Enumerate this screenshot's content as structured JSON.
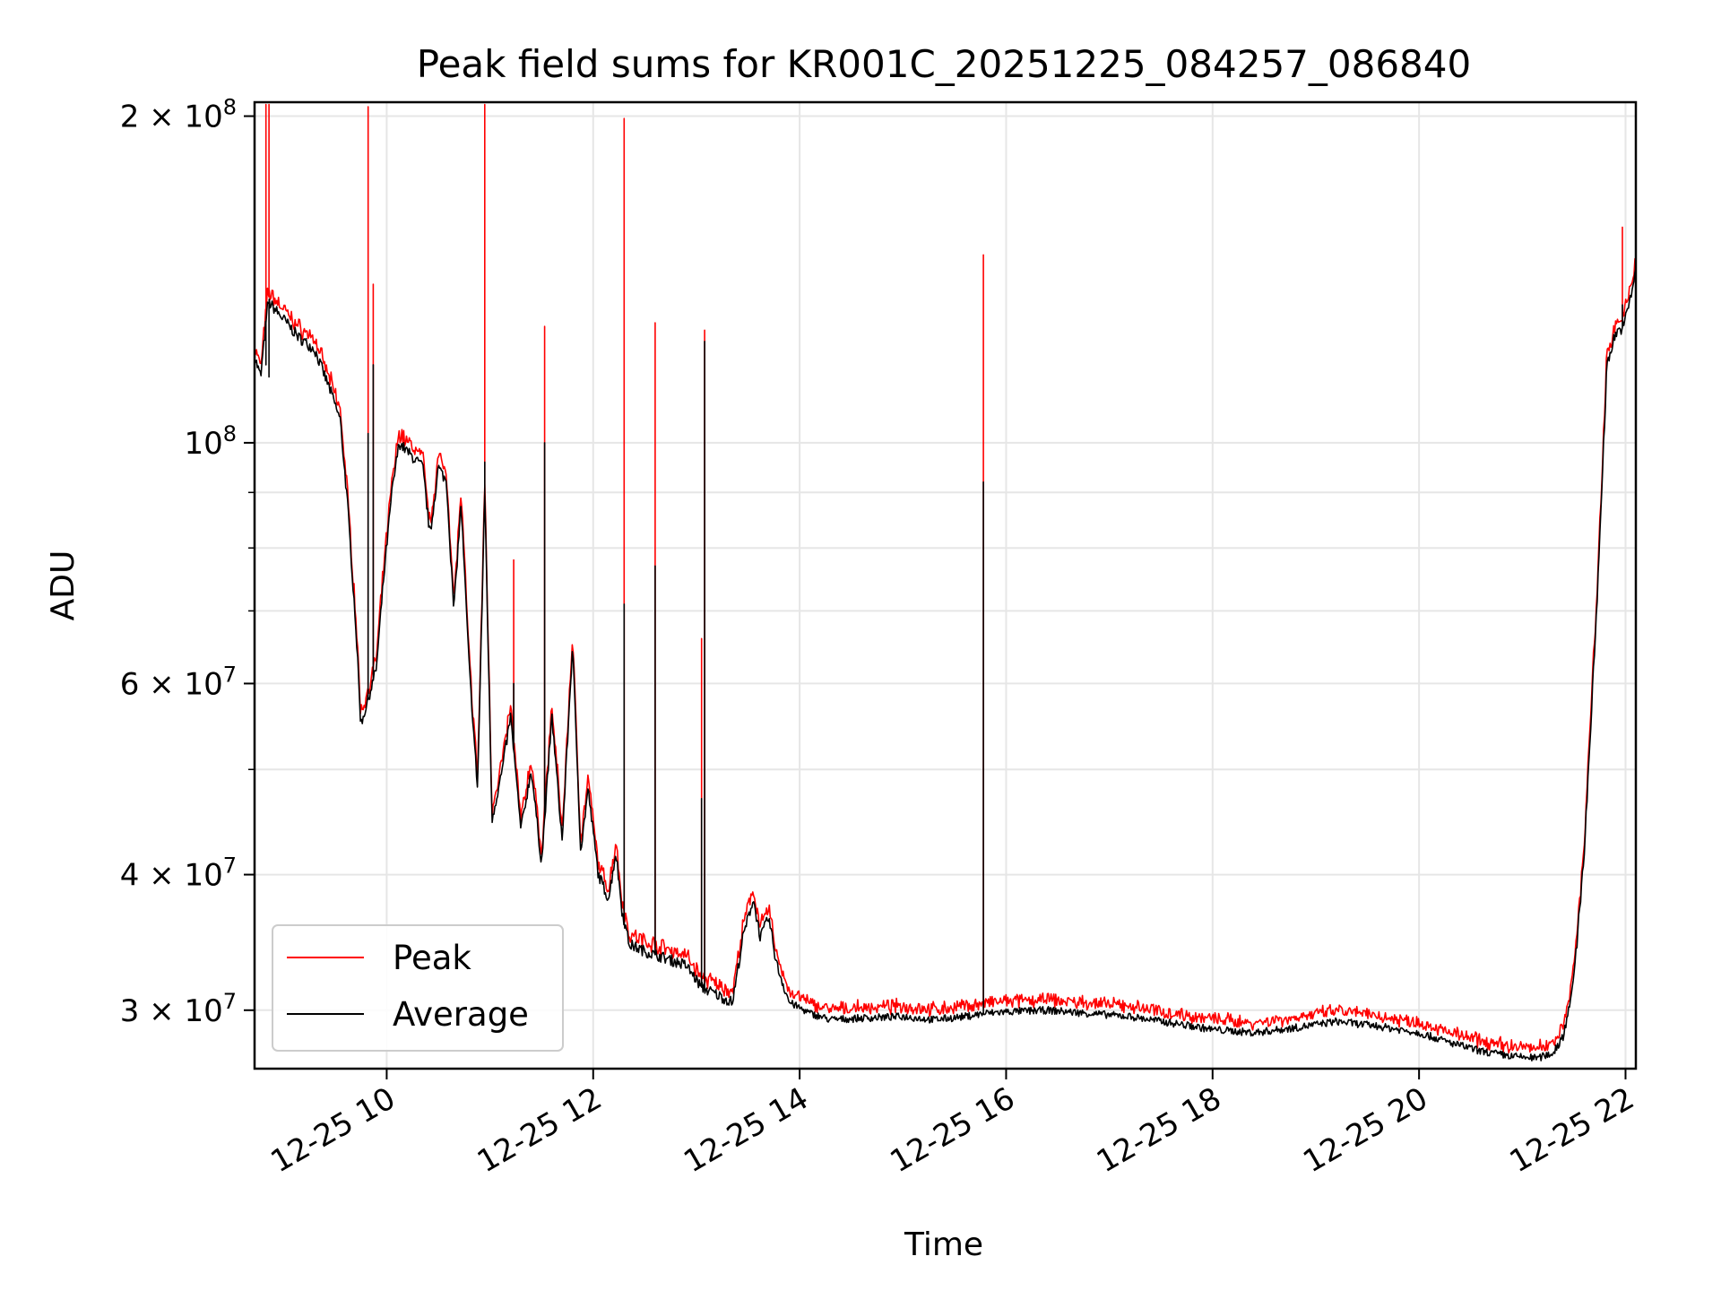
{
  "chart_data": {
    "type": "line",
    "title": "Peak field sums for KR001C_20251225_084257_086840",
    "xlabel": "Time",
    "ylabel": "ADU",
    "yscale": "log",
    "xlim": [
      8.72,
      22.1
    ],
    "ylim": [
      26500000,
      206000000
    ],
    "x_ticks": [
      {
        "value": 10,
        "label": "12-25 10"
      },
      {
        "value": 12,
        "label": "12-25 12"
      },
      {
        "value": 14,
        "label": "12-25 14"
      },
      {
        "value": 16,
        "label": "12-25 16"
      },
      {
        "value": 18,
        "label": "12-25 18"
      },
      {
        "value": 20,
        "label": "12-25 20"
      },
      {
        "value": 22,
        "label": "12-25 22"
      }
    ],
    "y_ticks": [
      {
        "value": 30000000,
        "mantissa": "3",
        "exponent": "7"
      },
      {
        "value": 40000000,
        "mantissa": "4",
        "exponent": "7"
      },
      {
        "value": 60000000,
        "mantissa": "6",
        "exponent": "7"
      },
      {
        "value": 100000000,
        "mantissa": "",
        "exponent": "8"
      },
      {
        "value": 200000000,
        "mantissa": "2",
        "exponent": "8"
      }
    ],
    "y_minor_ticks": [
      50000000,
      70000000,
      80000000,
      90000000
    ],
    "grid": true,
    "legend_position": "lower-left",
    "series": [
      {
        "name": "Peak",
        "color": "#ff0000",
        "offset": 1.012
      },
      {
        "name": "Average",
        "color": "#000000",
        "offset": 1.0
      }
    ],
    "baseline_points": [
      [
        8.72,
        120000000
      ],
      [
        8.78,
        115000000
      ],
      [
        8.85,
        135000000
      ],
      [
        9.0,
        130000000
      ],
      [
        9.15,
        125000000
      ],
      [
        9.3,
        122000000
      ],
      [
        9.45,
        112000000
      ],
      [
        9.55,
        105000000
      ],
      [
        9.62,
        88000000
      ],
      [
        9.7,
        68000000
      ],
      [
        9.75,
        55000000
      ],
      [
        9.82,
        58000000
      ],
      [
        9.9,
        62000000
      ],
      [
        9.97,
        75000000
      ],
      [
        10.05,
        90000000
      ],
      [
        10.12,
        100000000
      ],
      [
        10.25,
        97000000
      ],
      [
        10.35,
        95000000
      ],
      [
        10.42,
        82000000
      ],
      [
        10.5,
        95000000
      ],
      [
        10.58,
        92000000
      ],
      [
        10.65,
        70000000
      ],
      [
        10.72,
        88000000
      ],
      [
        10.8,
        62000000
      ],
      [
        10.88,
        48000000
      ],
      [
        10.95,
        90000000
      ],
      [
        11.02,
        45000000
      ],
      [
        11.12,
        50000000
      ],
      [
        11.2,
        56000000
      ],
      [
        11.3,
        44000000
      ],
      [
        11.4,
        50000000
      ],
      [
        11.5,
        41000000
      ],
      [
        11.6,
        56000000
      ],
      [
        11.7,
        43000000
      ],
      [
        11.8,
        65000000
      ],
      [
        11.88,
        42000000
      ],
      [
        11.95,
        48000000
      ],
      [
        12.05,
        40000000
      ],
      [
        12.15,
        38000000
      ],
      [
        12.22,
        42000000
      ],
      [
        12.28,
        37000000
      ],
      [
        12.35,
        34500000
      ],
      [
        12.5,
        34000000
      ],
      [
        12.7,
        33500000
      ],
      [
        12.9,
        33000000
      ],
      [
        13.05,
        31500000
      ],
      [
        13.2,
        31000000
      ],
      [
        13.35,
        30500000
      ],
      [
        13.45,
        35000000
      ],
      [
        13.55,
        38000000
      ],
      [
        13.62,
        35000000
      ],
      [
        13.7,
        36500000
      ],
      [
        13.78,
        33000000
      ],
      [
        13.9,
        30500000
      ],
      [
        14.1,
        29800000
      ],
      [
        14.3,
        29400000
      ],
      [
        14.6,
        29500000
      ],
      [
        15.0,
        29600000
      ],
      [
        15.3,
        29400000
      ],
      [
        15.6,
        29600000
      ],
      [
        15.8,
        29800000
      ],
      [
        16.0,
        29900000
      ],
      [
        16.4,
        30000000
      ],
      [
        16.8,
        29800000
      ],
      [
        17.2,
        29600000
      ],
      [
        17.6,
        29200000
      ],
      [
        18.0,
        28800000
      ],
      [
        18.4,
        28600000
      ],
      [
        18.8,
        28900000
      ],
      [
        19.2,
        29300000
      ],
      [
        19.6,
        29000000
      ],
      [
        20.0,
        28600000
      ],
      [
        20.3,
        28000000
      ],
      [
        20.6,
        27500000
      ],
      [
        20.9,
        27200000
      ],
      [
        21.15,
        27100000
      ],
      [
        21.3,
        27400000
      ],
      [
        21.4,
        28500000
      ],
      [
        21.5,
        32000000
      ],
      [
        21.6,
        42000000
      ],
      [
        21.72,
        70000000
      ],
      [
        21.82,
        118000000
      ],
      [
        21.9,
        126000000
      ],
      [
        21.98,
        128000000
      ],
      [
        22.05,
        136000000
      ],
      [
        22.1,
        145000000
      ]
    ],
    "spikes": [
      {
        "t": 8.83,
        "peak": 205000000,
        "average": 118000000
      },
      {
        "t": 8.86,
        "peak": 205000000,
        "average": 115000000
      },
      {
        "t": 9.82,
        "peak": 204000000,
        "average": 102000000
      },
      {
        "t": 9.87,
        "peak": 140000000,
        "average": 118000000
      },
      {
        "t": 10.95,
        "peak": 205000000,
        "average": 96000000
      },
      {
        "t": 11.23,
        "peak": 78000000,
        "average": 60000000
      },
      {
        "t": 11.53,
        "peak": 128000000,
        "average": 100000000
      },
      {
        "t": 12.3,
        "peak": 199000000,
        "average": 71000000
      },
      {
        "t": 12.6,
        "peak": 129000000,
        "average": 77000000
      },
      {
        "t": 13.05,
        "peak": 66000000,
        "average": 47000000
      },
      {
        "t": 13.08,
        "peak": 127000000,
        "average": 124000000
      },
      {
        "t": 15.78,
        "peak": 149000000,
        "average": 92000000
      },
      {
        "t": 21.97,
        "peak": 158000000,
        "average": 134000000
      }
    ]
  }
}
